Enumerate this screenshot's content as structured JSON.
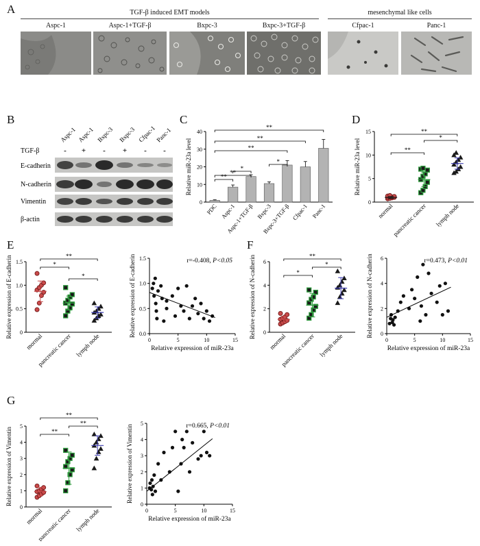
{
  "panels": {
    "A": "A",
    "B": "B",
    "C": "C",
    "D": "D",
    "E": "E",
    "F": "F",
    "G": "G"
  },
  "panelA": {
    "group1": "TGF-β induced EMT models",
    "group2": "mesenchymal like cells",
    "lines": [
      "Aspc-1",
      "Aspc-1+TGF-β",
      "Bxpc-3",
      "Bxpc-3+TGF-β",
      "Cfpac-1",
      "Panc-1"
    ]
  },
  "panelB": {
    "lanes": [
      "Aspc-1",
      "Aspc-1",
      "Bxpc-3",
      "Bxpc-3",
      "Cfpac-1",
      "Panc-1"
    ],
    "tgf_label": "TGF-β",
    "tgf_marks": [
      "-",
      "+",
      "-",
      "+",
      "-",
      "-"
    ],
    "proteins": [
      "E-cadherin",
      "N-cadherin",
      "Vimentin",
      "β-actin"
    ]
  },
  "chart_data": [
    {
      "id": "C",
      "type": "bar",
      "ylabel": "Relative miR-23a level",
      "categories": [
        "PDC",
        "Aspc-1",
        "Aspc-1+TGF-β",
        "Bxpc-3",
        "Bxpc-3+TGF-β",
        "Cfpac-1",
        "Panc-1"
      ],
      "values": [
        1,
        8.5,
        14.5,
        10.5,
        21,
        20,
        30.5
      ],
      "errors": [
        0.3,
        1.2,
        1.0,
        1.0,
        2.5,
        3.0,
        5.0
      ],
      "ylim": [
        0,
        40
      ],
      "yticks": [
        "0",
        "10",
        "20",
        "30",
        "40"
      ],
      "annotations": [
        "**",
        "**",
        "*",
        "*",
        "**",
        "**",
        "**"
      ]
    },
    {
      "id": "D",
      "type": "scatter",
      "ylabel": "Relative miR-23a level",
      "categories": [
        "normal",
        "pancreatic cancer",
        "lymph node"
      ],
      "means": [
        1.0,
        4.8,
        8.2
      ],
      "sds": [
        0.2,
        1.5,
        1.2
      ],
      "points": [
        [
          0.7,
          0.8,
          0.9,
          1.0,
          1.0,
          1.1,
          1.1,
          1.2,
          1.3,
          1.4
        ],
        [
          2.0,
          2.5,
          3.3,
          4.2,
          4.8,
          5.5,
          6.0,
          6.8,
          7.0,
          7.2
        ],
        [
          6.2,
          6.5,
          7.0,
          7.5,
          8.0,
          8.5,
          9.0,
          9.5,
          10.0,
          10.5
        ]
      ],
      "ylim": [
        0,
        15
      ],
      "yticks": [
        "0",
        "5",
        "10",
        "15"
      ],
      "annotations": [
        "**",
        "*",
        "**"
      ]
    },
    {
      "id": "E1",
      "type": "scatter",
      "ylabel": "Relative expression of E-cadherin",
      "categories": [
        "mormal",
        "pancreatic cancer",
        "lymph node"
      ],
      "means": [
        0.87,
        0.62,
        0.42
      ],
      "sds": [
        0.22,
        0.15,
        0.12
      ],
      "points": [
        [
          0.48,
          0.62,
          0.78,
          0.85,
          0.9,
          0.95,
          1.0,
          1.05,
          1.25
        ],
        [
          0.35,
          0.45,
          0.52,
          0.6,
          0.62,
          0.68,
          0.75,
          0.8,
          0.95
        ],
        [
          0.25,
          0.3,
          0.35,
          0.38,
          0.42,
          0.45,
          0.5,
          0.55,
          0.62
        ]
      ],
      "ylim": [
        0,
        1.5
      ],
      "yticks": [
        "0",
        "0.5",
        "1.0",
        "1.5"
      ],
      "annotations": [
        "*",
        "**",
        "*"
      ]
    },
    {
      "id": "E2",
      "type": "scatter",
      "xlabel": "Relative expression of miR-23a",
      "ylabel": "Relative expression of E-cadherin",
      "annotation": "r=-0.408, ",
      "pval": "P<0.05",
      "xlim": [
        0,
        15
      ],
      "ylim": [
        0,
        1.5
      ],
      "xticks": [
        "0",
        "5",
        "10",
        "15"
      ],
      "yticks": [
        "0.0",
        "0.5",
        "1.0",
        "1.5"
      ],
      "fit": [
        [
          0,
          0.82
        ],
        [
          11.5,
          0.32
        ]
      ],
      "x": [
        0.5,
        0.7,
        0.8,
        1.0,
        1.1,
        1.2,
        1.3,
        1.5,
        2,
        2.2,
        2.5,
        3,
        3,
        4,
        4.5,
        5,
        5.5,
        6,
        6.5,
        7,
        7.5,
        8,
        8.5,
        9,
        9.5,
        10,
        10.5,
        11
      ],
      "y": [
        0.9,
        1.0,
        0.75,
        1.1,
        0.6,
        0.45,
        0.3,
        0.85,
        0.95,
        0.7,
        0.25,
        0.5,
        0.65,
        0.75,
        0.35,
        0.9,
        0.55,
        0.45,
        0.95,
        0.3,
        0.55,
        0.7,
        0.4,
        0.6,
        0.3,
        0.45,
        0.25,
        0.35
      ]
    },
    {
      "id": "F1",
      "type": "scatter",
      "ylabel": "Relative expression of N-cadherin",
      "categories": [
        "mormal",
        "pancreatic cancer",
        "lymph node"
      ],
      "means": [
        1.1,
        2.3,
        3.75
      ],
      "sds": [
        0.25,
        1.0,
        0.9
      ],
      "points": [
        [
          0.7,
          0.8,
          0.9,
          1.0,
          1.1,
          1.2,
          1.3,
          1.5,
          1.6
        ],
        [
          1.2,
          1.5,
          1.9,
          2.2,
          2.5,
          2.8,
          3.0,
          3.4,
          3.6
        ],
        [
          2.5,
          3.0,
          3.3,
          3.6,
          3.8,
          4.0,
          4.3,
          4.6,
          5.2
        ]
      ],
      "ylim": [
        0,
        6
      ],
      "yticks": [
        "0",
        "2",
        "4",
        "6"
      ],
      "annotations": [
        "*",
        "**",
        "*"
      ]
    },
    {
      "id": "F2",
      "type": "scatter",
      "xlabel": "Relative expression of miR-23a",
      "ylabel": "Relative expression of N-cadherin",
      "annotation": "r=0.473, ",
      "pval": "P<0.01",
      "xlim": [
        0,
        15
      ],
      "ylim": [
        0,
        6
      ],
      "xticks": [
        "0",
        "5",
        "10",
        "15"
      ],
      "yticks": [
        "0",
        "2",
        "4",
        "6"
      ],
      "fit": [
        [
          0,
          1.3
        ],
        [
          11.5,
          3.7
        ]
      ],
      "x": [
        0.5,
        0.7,
        0.8,
        1.0,
        1.1,
        1.3,
        1.5,
        2,
        2.5,
        3,
        4,
        4.5,
        5,
        5.5,
        6,
        6.2,
        6.5,
        7,
        7.5,
        8,
        9,
        9.5,
        10,
        10.5,
        11
      ],
      "y": [
        0.8,
        1.2,
        1.5,
        0.9,
        1.1,
        0.7,
        1.3,
        1.8,
        2.5,
        3.0,
        2.0,
        3.5,
        2.8,
        4.5,
        1.0,
        2.2,
        5.5,
        1.5,
        4.8,
        3.2,
        2.5,
        3.8,
        1.5,
        4.0,
        1.8
      ]
    },
    {
      "id": "G1",
      "type": "scatter",
      "ylabel": "Relative expression of Vimentin",
      "categories": [
        "mormal",
        "pancreatic cancer",
        "lymph node"
      ],
      "means": [
        0.95,
        2.4,
        3.8
      ],
      "sds": [
        0.25,
        1.0,
        0.6
      ],
      "points": [
        [
          0.6,
          0.7,
          0.8,
          0.9,
          0.95,
          1.0,
          1.1,
          1.2,
          1.3
        ],
        [
          1.0,
          1.5,
          2.0,
          2.3,
          2.5,
          2.8,
          3.0,
          3.2,
          3.5
        ],
        [
          2.4,
          3.0,
          3.4,
          3.6,
          3.8,
          4.0,
          4.2,
          4.4,
          4.5
        ]
      ],
      "ylim": [
        0,
        5
      ],
      "yticks": [
        "0",
        "1",
        "2",
        "3",
        "4",
        "5"
      ],
      "annotations": [
        "**",
        "**",
        "**"
      ]
    },
    {
      "id": "G2",
      "type": "scatter",
      "xlabel": "Relative expression of miR-23a",
      "ylabel": "Relative expression of Vimentin",
      "annotation": "r=0.665, ",
      "pval": "P<0.01",
      "xlim": [
        0,
        15
      ],
      "ylim": [
        0,
        5
      ],
      "xticks": [
        "0",
        "5",
        "10",
        "15"
      ],
      "yticks": [
        "0",
        "1",
        "2",
        "3",
        "4",
        "5"
      ],
      "fit": [
        [
          0,
          0.8
        ],
        [
          11.5,
          4.05
        ]
      ],
      "x": [
        0.5,
        0.6,
        0.8,
        0.9,
        1.0,
        1.1,
        1.3,
        1.5,
        2,
        2.5,
        3,
        4,
        4.5,
        5,
        5.5,
        6,
        6.2,
        6.5,
        7,
        7.5,
        8,
        9,
        9.5,
        10,
        10.5,
        11
      ],
      "y": [
        1.0,
        1.3,
        0.9,
        1.5,
        0.6,
        1.1,
        1.8,
        0.8,
        2.5,
        1.5,
        3.2,
        2.0,
        3.5,
        4.5,
        0.8,
        2.5,
        4.0,
        3.5,
        4.5,
        2.0,
        3.8,
        2.8,
        3.0,
        4.5,
        3.2,
        3.0
      ]
    }
  ]
}
